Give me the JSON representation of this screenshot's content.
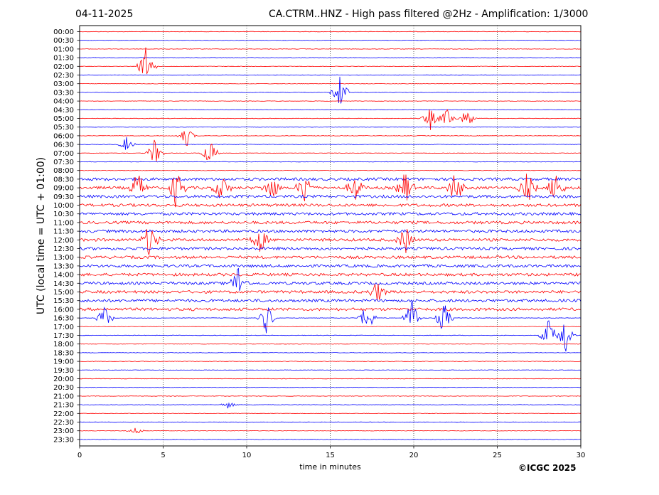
{
  "header": {
    "date": "04-11-2025",
    "title": "CA.CTRM..HNZ - High pass filtered @2Hz - Amplification: 1/3000"
  },
  "footer": {
    "copyright": "©ICGC 2025"
  },
  "chart_data": {
    "type": "line",
    "title": "CA.CTRM..HNZ - High pass filtered @2Hz - Amplification: 1/3000",
    "xlabel": "time in minutes",
    "ylabel": "UTC (local time = UTC + 01:00)",
    "xlim": [
      0,
      30
    ],
    "x_ticks": [
      0,
      5,
      10,
      15,
      20,
      25,
      30
    ],
    "grid": "vertical dotted lines at x ticks",
    "row_labels": [
      "00:00",
      "00:30",
      "01:00",
      "01:30",
      "02:00",
      "02:30",
      "03:00",
      "03:30",
      "04:00",
      "04:30",
      "05:00",
      "05:30",
      "06:00",
      "06:30",
      "07:00",
      "07:30",
      "08:00",
      "08:30",
      "09:00",
      "09:30",
      "10:00",
      "10:30",
      "11:00",
      "11:30",
      "12:00",
      "12:30",
      "13:00",
      "13:30",
      "14:00",
      "14:30",
      "15:00",
      "15:30",
      "16:00",
      "16:30",
      "17:00",
      "17:30",
      "18:00",
      "18:30",
      "19:00",
      "19:30",
      "20:00",
      "20:30",
      "21:00",
      "21:30",
      "22:00",
      "22:30",
      "23:00",
      "23:30"
    ],
    "row_colors": [
      "#ff0000",
      "#0000ff"
    ],
    "events": [
      {
        "row": 4,
        "minute": 4.0,
        "amplitude": 6
      },
      {
        "row": 7,
        "minute": 15.6,
        "amplitude": 5
      },
      {
        "row": 10,
        "minute": 21.0,
        "amplitude": 3
      },
      {
        "row": 10,
        "minute": 22.0,
        "amplitude": 3
      },
      {
        "row": 10,
        "minute": 23.2,
        "amplitude": 3
      },
      {
        "row": 12,
        "minute": 6.4,
        "amplitude": 3
      },
      {
        "row": 13,
        "minute": 2.8,
        "amplitude": 2
      },
      {
        "row": 14,
        "minute": 4.5,
        "amplitude": 4
      },
      {
        "row": 14,
        "minute": 7.8,
        "amplitude": 4
      },
      {
        "row": 18,
        "minute": 3.5,
        "amplitude": 5
      },
      {
        "row": 18,
        "minute": 5.8,
        "amplitude": 6
      },
      {
        "row": 18,
        "minute": 8.5,
        "amplitude": 4
      },
      {
        "row": 18,
        "minute": 11.5,
        "amplitude": 4
      },
      {
        "row": 18,
        "minute": 13.5,
        "amplitude": 5
      },
      {
        "row": 18,
        "minute": 16.5,
        "amplitude": 4
      },
      {
        "row": 18,
        "minute": 19.5,
        "amplitude": 5
      },
      {
        "row": 18,
        "minute": 22.5,
        "amplitude": 5
      },
      {
        "row": 18,
        "minute": 26.8,
        "amplitude": 5
      },
      {
        "row": 18,
        "minute": 28.5,
        "amplitude": 5
      },
      {
        "row": 24,
        "minute": 4.2,
        "amplitude": 5
      },
      {
        "row": 24,
        "minute": 10.8,
        "amplitude": 4
      },
      {
        "row": 24,
        "minute": 19.5,
        "amplitude": 4
      },
      {
        "row": 29,
        "minute": 9.5,
        "amplitude": 5
      },
      {
        "row": 30,
        "minute": 17.8,
        "amplitude": 3
      },
      {
        "row": 33,
        "minute": 1.5,
        "amplitude": 4
      },
      {
        "row": 33,
        "minute": 11.2,
        "amplitude": 5
      },
      {
        "row": 33,
        "minute": 17.2,
        "amplitude": 5
      },
      {
        "row": 33,
        "minute": 19.9,
        "amplitude": 6
      },
      {
        "row": 33,
        "minute": 21.8,
        "amplitude": 5
      },
      {
        "row": 35,
        "minute": 28.1,
        "amplitude": 5
      },
      {
        "row": 35,
        "minute": 29.1,
        "amplitude": 6
      },
      {
        "row": 43,
        "minute": 8.9,
        "amplitude": 1
      },
      {
        "row": 46,
        "minute": 3.4,
        "amplitude": 1
      }
    ]
  }
}
